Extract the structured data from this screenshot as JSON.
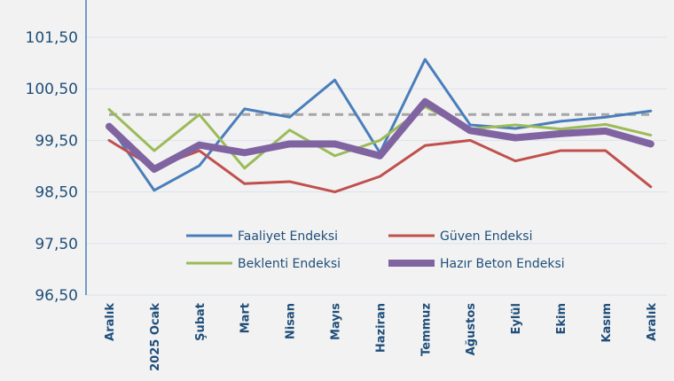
{
  "chart_data": {
    "type": "line",
    "categories": [
      "Aralık",
      "2025 Ocak",
      "Şubat",
      "Mart",
      "Nisan",
      "Mayıs",
      "Haziran",
      "Temmuz",
      "Ağustos",
      "Eylül",
      "Ekim",
      "Kasım",
      "Aralık"
    ],
    "y_ticks": [
      "96,50",
      "97,50",
      "98,50",
      "99,50",
      "100,50",
      "101,50"
    ],
    "y_tick_values": [
      96.5,
      97.5,
      98.5,
      99.5,
      100.5,
      101.5
    ],
    "ylim": [
      96.5,
      102.2
    ],
    "grid": true,
    "reference_line": {
      "value": 100,
      "style": "dashed",
      "color": "#a6a6a6"
    },
    "legend_position": "inside-bottom",
    "series": [
      {
        "name": "Faaliyet Endeksi",
        "color": "#4a7ebb",
        "width": 3,
        "values": [
          99.8,
          98.53,
          99.01,
          100.11,
          99.95,
          100.67,
          99.26,
          101.07,
          99.8,
          99.73,
          99.87,
          99.95,
          100.07
        ]
      },
      {
        "name": "Güven Endeksi",
        "color": "#c0504d",
        "width": 3,
        "values": [
          99.5,
          98.97,
          99.3,
          98.66,
          98.7,
          98.5,
          98.8,
          99.4,
          99.5,
          99.1,
          99.3,
          99.3,
          98.6
        ]
      },
      {
        "name": "Beklenti Endeksi",
        "color": "#9bbb59",
        "width": 3,
        "values": [
          100.1,
          99.3,
          100.0,
          98.96,
          99.7,
          99.2,
          99.5,
          100.15,
          99.72,
          99.8,
          99.72,
          99.81,
          99.6
        ]
      },
      {
        "name": "Hazır Beton Endeksi",
        "color": "#8064a2",
        "width": 8,
        "values": [
          99.77,
          98.94,
          99.41,
          99.26,
          99.43,
          99.43,
          99.2,
          100.25,
          99.69,
          99.55,
          99.63,
          99.68,
          99.43
        ]
      }
    ]
  }
}
